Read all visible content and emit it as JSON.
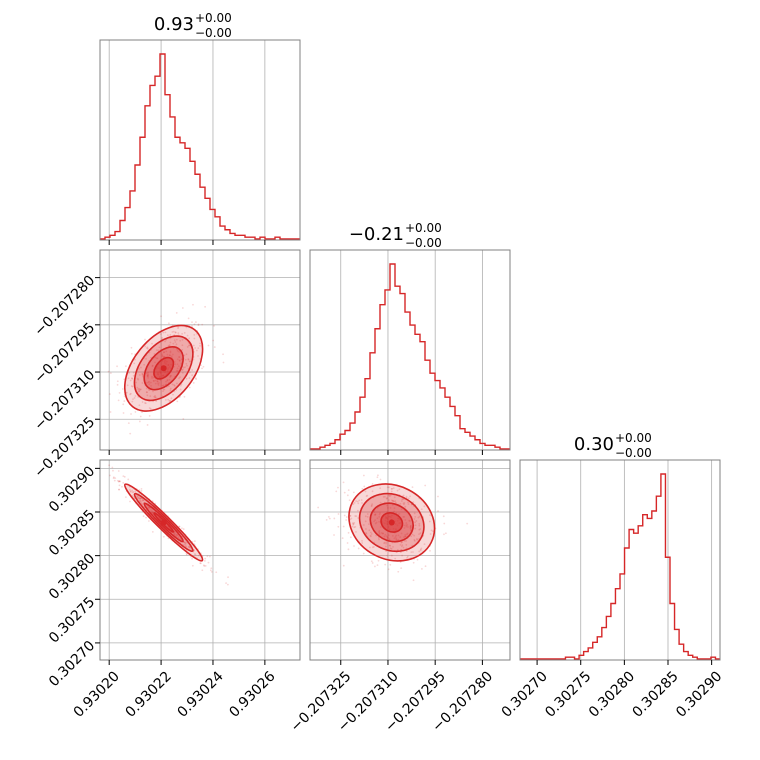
{
  "chart_data": {
    "type": "corner",
    "color": "#d62728",
    "grid": true,
    "parameters": [
      {
        "title_value": "0.93",
        "title_plus": "+0.00",
        "title_minus": "−0.00",
        "range": [
          0.930198,
          0.930272
        ],
        "ticks": [
          0.9302,
          0.93022,
          0.93024,
          0.93026
        ],
        "tick_labels": [
          "0.93020",
          "0.93022",
          "0.93024",
          "0.93026"
        ],
        "median": 0.930221,
        "sigma": 7.5e-06,
        "hist": [
          0.0,
          0.01,
          0.02,
          0.04,
          0.1,
          0.17,
          0.26,
          0.4,
          0.55,
          0.72,
          0.83,
          0.88,
          1.0,
          0.78,
          0.66,
          0.55,
          0.52,
          0.49,
          0.42,
          0.35,
          0.28,
          0.22,
          0.16,
          0.12,
          0.07,
          0.05,
          0.03,
          0.02,
          0.02,
          0.01,
          0.01,
          0.0,
          0.01,
          0.0,
          0.0,
          0.01,
          0.0,
          0.0,
          0.0,
          0.0
        ]
      },
      {
        "title_value": "−0.21",
        "title_plus": "+0.00",
        "title_minus": "−0.00",
        "range": [
          -0.2073335,
          -0.2072725
        ],
        "ticks": [
          -0.207325,
          -0.20731,
          -0.207295,
          -0.20728
        ],
        "tick_labels": [
          "−0.207325",
          "−0.207310",
          "−0.207295",
          "−0.207280"
        ],
        "median": -0.2073088,
        "sigma": 6.8e-06,
        "hist": [
          0.0,
          0.0,
          0.01,
          0.02,
          0.03,
          0.05,
          0.08,
          0.1,
          0.14,
          0.2,
          0.28,
          0.38,
          0.52,
          0.65,
          0.78,
          0.86,
          1.0,
          0.88,
          0.84,
          0.74,
          0.67,
          0.62,
          0.58,
          0.48,
          0.41,
          0.37,
          0.33,
          0.28,
          0.23,
          0.18,
          0.11,
          0.09,
          0.07,
          0.05,
          0.03,
          0.02,
          0.02,
          0.01,
          0.0,
          0.0
        ]
      },
      {
        "title_value": "0.30",
        "title_plus": "+0.00",
        "title_minus": "−0.00",
        "range": [
          0.302685,
          0.302905
        ],
        "ticks": [
          0.3027,
          0.30275,
          0.3028,
          0.30285,
          0.3029
        ],
        "tick_labels": [
          "0.30270",
          "0.30275",
          "0.30280",
          "0.30285",
          "0.30290"
        ],
        "median": 0.302838,
        "sigma": 2.2e-05,
        "hist": [
          0.0,
          0.0,
          0.0,
          0.0,
          0.0,
          0.0,
          0.0,
          0.0,
          0.0,
          0.0,
          0.01,
          0.01,
          0.0,
          0.02,
          0.04,
          0.06,
          0.09,
          0.12,
          0.17,
          0.23,
          0.3,
          0.38,
          0.46,
          0.6,
          0.7,
          0.68,
          0.72,
          0.78,
          0.76,
          0.8,
          0.88,
          1.0,
          0.55,
          0.3,
          0.16,
          0.08,
          0.04,
          0.02,
          0.01,
          0.0,
          0.0,
          0.0,
          0.01,
          0.0
        ]
      }
    ],
    "pairs": [
      {
        "x": 0,
        "y": 1,
        "correlation": 0.45
      },
      {
        "x": 0,
        "y": 2,
        "correlation": -0.97
      },
      {
        "x": 1,
        "y": 2,
        "correlation": -0.15
      }
    ]
  }
}
